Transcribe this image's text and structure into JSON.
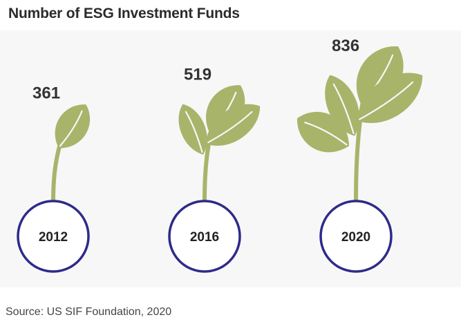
{
  "title": "Number of ESG Investment Funds",
  "source": "Source: US SIF Foundation, 2020",
  "colors": {
    "leaf": "#a8b46a",
    "stem": "#a8b46a",
    "circle_stroke": "#2e2a8a",
    "value_text": "#333333",
    "label_text": "#222222",
    "panel_bg": "#f7f7f7"
  },
  "chart_data": {
    "type": "bar",
    "categories": [
      "2012",
      "2016",
      "2020"
    ],
    "values": [
      361,
      519,
      836
    ],
    "value_labels": [
      "361",
      "519",
      "836"
    ],
    "title": "Number of ESG Investment Funds",
    "xlabel": "",
    "ylabel": "",
    "grid": false,
    "legend": "none"
  }
}
